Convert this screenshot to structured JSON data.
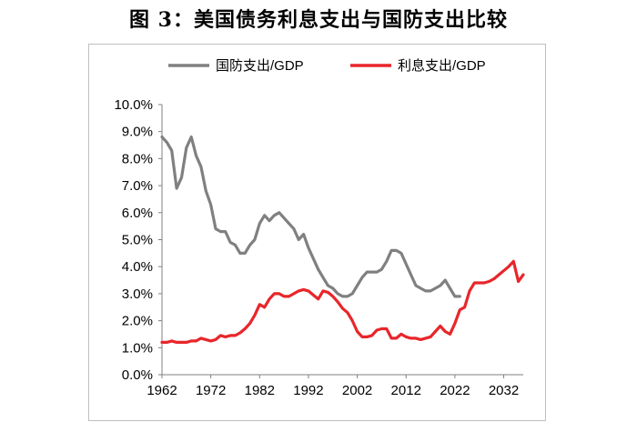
{
  "title": "图 3：美国债务利息支出与国防支出比较",
  "chart_data": {
    "type": "line",
    "title": "图 3：美国债务利息支出与国防支出比较",
    "xlabel": "",
    "ylabel": "",
    "xlim": [
      1962,
      2036
    ],
    "ylim": [
      0,
      10
    ],
    "x_ticks": [
      "1962",
      "1972",
      "1982",
      "1992",
      "2002",
      "2012",
      "2022",
      "2032"
    ],
    "y_ticks": [
      "10.0%",
      "9.0%",
      "8.0%",
      "7.0%",
      "6.0%",
      "5.0%",
      "4.0%",
      "3.0%",
      "2.0%",
      "1.0%",
      "0.0%"
    ],
    "legend_position": "top",
    "grid": false,
    "series": [
      {
        "name": "国防支出/GDP",
        "color": "#808080",
        "x": [
          1962,
          1963,
          1964,
          1965,
          1966,
          1967,
          1968,
          1969,
          1970,
          1971,
          1972,
          1973,
          1974,
          1975,
          1976,
          1977,
          1978,
          1979,
          1980,
          1981,
          1982,
          1983,
          1984,
          1985,
          1986,
          1987,
          1988,
          1989,
          1990,
          1991,
          1992,
          1993,
          1994,
          1995,
          1996,
          1997,
          1998,
          1999,
          2000,
          2001,
          2002,
          2003,
          2004,
          2005,
          2006,
          2007,
          2008,
          2009,
          2010,
          2011,
          2012,
          2013,
          2014,
          2015,
          2016,
          2017,
          2018,
          2019,
          2020,
          2021,
          2022,
          2023
        ],
        "values": [
          8.8,
          8.6,
          8.3,
          6.9,
          7.3,
          8.4,
          8.8,
          8.1,
          7.7,
          6.8,
          6.3,
          5.4,
          5.3,
          5.3,
          4.9,
          4.8,
          4.5,
          4.5,
          4.8,
          5.0,
          5.6,
          5.9,
          5.7,
          5.9,
          6.0,
          5.8,
          5.6,
          5.4,
          5.0,
          5.2,
          4.7,
          4.3,
          3.9,
          3.6,
          3.3,
          3.2,
          3.0,
          2.9,
          2.9,
          3.0,
          3.3,
          3.6,
          3.8,
          3.8,
          3.8,
          3.9,
          4.2,
          4.6,
          4.6,
          4.5,
          4.1,
          3.7,
          3.3,
          3.2,
          3.1,
          3.1,
          3.2,
          3.3,
          3.5,
          3.2,
          2.9,
          2.9
        ]
      },
      {
        "name": "利息支出/GDP",
        "color": "#e8262a",
        "x": [
          1962,
          1963,
          1964,
          1965,
          1966,
          1967,
          1968,
          1969,
          1970,
          1971,
          1972,
          1973,
          1974,
          1975,
          1976,
          1977,
          1978,
          1979,
          1980,
          1981,
          1982,
          1983,
          1984,
          1985,
          1986,
          1987,
          1988,
          1989,
          1990,
          1991,
          1992,
          1993,
          1994,
          1995,
          1996,
          1997,
          1998,
          1999,
          2000,
          2001,
          2002,
          2003,
          2004,
          2005,
          2006,
          2007,
          2008,
          2009,
          2010,
          2011,
          2012,
          2013,
          2014,
          2015,
          2016,
          2017,
          2018,
          2019,
          2020,
          2021,
          2022,
          2023,
          2024,
          2025,
          2026,
          2027,
          2028,
          2029,
          2030,
          2031,
          2032,
          2033,
          2034,
          2035,
          2036
        ],
        "values": [
          1.2,
          1.2,
          1.25,
          1.2,
          1.2,
          1.2,
          1.25,
          1.25,
          1.35,
          1.3,
          1.25,
          1.3,
          1.45,
          1.4,
          1.45,
          1.45,
          1.55,
          1.7,
          1.9,
          2.2,
          2.6,
          2.5,
          2.8,
          3.0,
          3.0,
          2.9,
          2.9,
          3.0,
          3.1,
          3.15,
          3.1,
          2.95,
          2.8,
          3.1,
          3.05,
          2.9,
          2.7,
          2.45,
          2.3,
          2.0,
          1.6,
          1.4,
          1.4,
          1.45,
          1.65,
          1.7,
          1.7,
          1.35,
          1.35,
          1.5,
          1.4,
          1.35,
          1.35,
          1.3,
          1.35,
          1.4,
          1.6,
          1.8,
          1.6,
          1.5,
          1.9,
          2.4,
          2.5,
          3.1,
          3.4,
          3.4,
          3.4,
          3.45,
          3.55,
          3.7,
          3.85,
          4.0,
          4.2,
          3.45,
          3.7
        ]
      }
    ]
  }
}
